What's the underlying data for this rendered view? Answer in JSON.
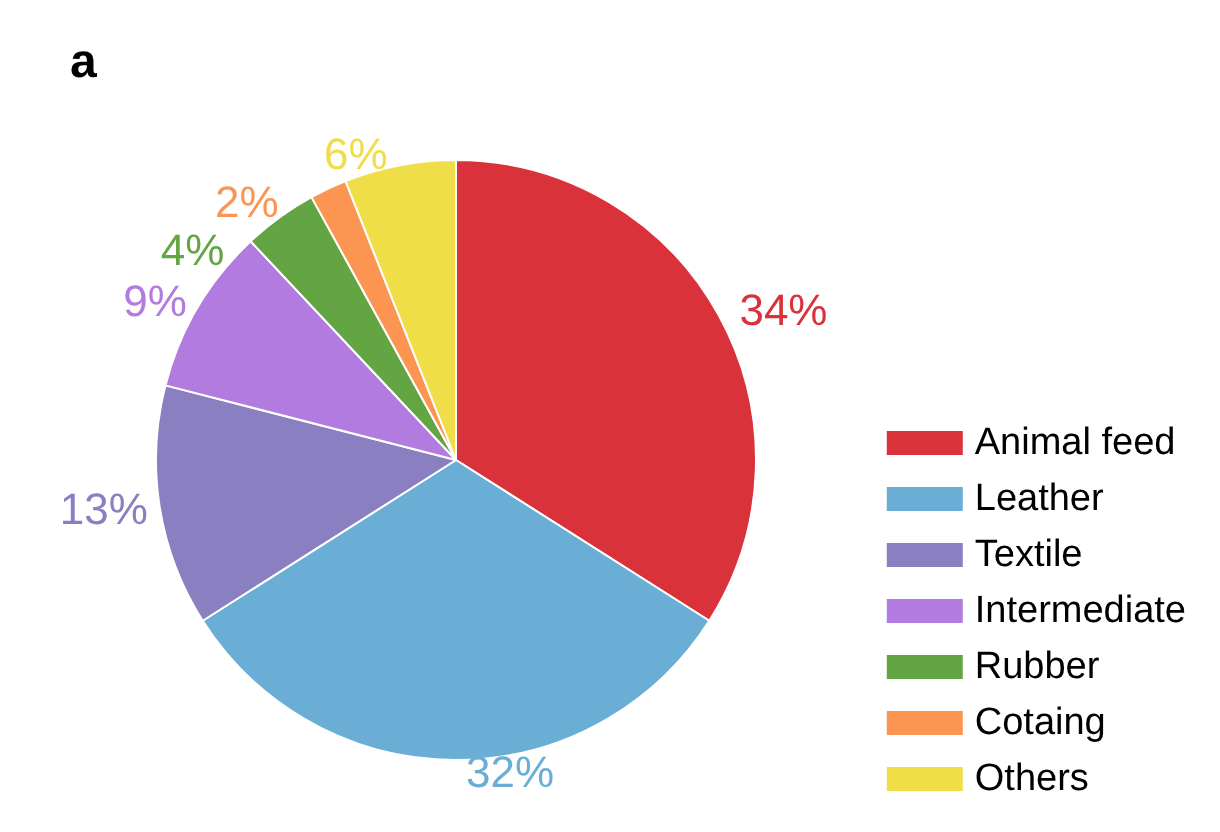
{
  "chart_data": {
    "type": "pie",
    "title": "a",
    "categories": [
      "Animal feed",
      "Leather",
      "Textile",
      "Intermediate",
      "Rubber",
      "Cotaing",
      "Others"
    ],
    "values": [
      34,
      32,
      13,
      9,
      4,
      2,
      6
    ],
    "colors": [
      "#d9323a",
      "#6aaed6",
      "#8a7fc0",
      "#b27be0",
      "#63a543",
      "#fd9552",
      "#f0de48"
    ],
    "value_labels": [
      "34%",
      "32%",
      "13%",
      "9%",
      "4%",
      "2%",
      "6%"
    ],
    "legend": "bottom right"
  }
}
